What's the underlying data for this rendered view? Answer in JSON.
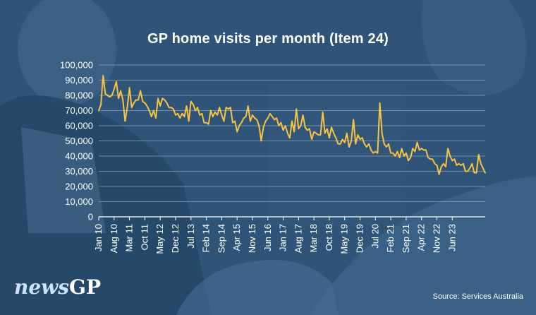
{
  "colors": {
    "background": "#2f5477",
    "line": "#f6c344",
    "grid": "#8fa9c3",
    "text": "#ffffff"
  },
  "logo": {
    "news": "news",
    "gp": "GP"
  },
  "source": "Source: Services Australia",
  "chart_data": {
    "type": "line",
    "title": "GP home visits per month (Item 24)",
    "xlabel": "",
    "ylabel": "",
    "ylim": [
      0,
      100000
    ],
    "yticks": [
      0,
      10000,
      20000,
      30000,
      40000,
      50000,
      60000,
      70000,
      80000,
      90000,
      100000
    ],
    "ytick_labels": [
      "0",
      "10,000",
      "20,000",
      "30,000",
      "40,000",
      "50,000",
      "60,000",
      "70,000",
      "80,000",
      "90,000",
      "100,000"
    ],
    "x_start": "Jan 10",
    "x_end": "Oct 23",
    "xtick_labels": [
      "Jan 10",
      "Aug 10",
      "Mar 11",
      "Oct 11",
      "May 12",
      "Dec 12",
      "Jul 13",
      "Feb 14",
      "Sep 14",
      "Apr 15",
      "Nov 15",
      "Jun 16",
      "Jan 17",
      "Aug 17",
      "Mar 18",
      "Oct 18",
      "May 19",
      "Dec 19",
      "Jul 20",
      "Feb 21",
      "Sep 21",
      "Apr 22",
      "Nov 22",
      "Jun 23"
    ],
    "grid": true,
    "legend": "none",
    "series": [
      {
        "values": [
          70000,
          74000,
          93000,
          81000,
          80000,
          79000,
          80000,
          84000,
          89000,
          78000,
          83000,
          77000,
          63000,
          72000,
          85000,
          72000,
          75000,
          77000,
          77000,
          83000,
          76000,
          75000,
          73000,
          70000,
          66000,
          70000,
          65000,
          78000,
          73000,
          78000,
          77000,
          75000,
          72000,
          72000,
          71000,
          67000,
          68000,
          65000,
          68000,
          66000,
          73000,
          63000,
          76000,
          74000,
          70000,
          72000,
          67000,
          68000,
          62000,
          62000,
          61000,
          70000,
          66000,
          69000,
          67000,
          72000,
          67000,
          63000,
          72000,
          71000,
          72000,
          62000,
          63000,
          56000,
          60000,
          62000,
          65000,
          66000,
          73000,
          63000,
          67000,
          65000,
          64000,
          60000,
          50000,
          59000,
          63000,
          65000,
          68000,
          66000,
          64000,
          65000,
          60000,
          62000,
          57000,
          60000,
          55000,
          52000,
          63000,
          56000,
          71000,
          58000,
          60000,
          67000,
          59000,
          57000,
          58000,
          51000,
          56000,
          55000,
          54000,
          54000,
          69000,
          55000,
          58000,
          52000,
          59000,
          55000,
          52000,
          48000,
          48000,
          51000,
          49000,
          55000,
          46000,
          50000,
          64000,
          48000,
          54000,
          51000,
          52000,
          48000,
          46000,
          48000,
          44000,
          42000,
          43000,
          42000,
          75000,
          55000,
          48000,
          46000,
          48000,
          42000,
          42000,
          40000,
          43000,
          39000,
          45000,
          40000,
          42000,
          37000,
          39000,
          45000,
          43000,
          49000,
          44000,
          45000,
          44000,
          44000,
          39000,
          38000,
          38000,
          35000,
          34000,
          28000,
          33000,
          35000,
          33000,
          45000,
          40000,
          37000,
          38000,
          34000,
          35000,
          34000,
          35000,
          30000,
          30000,
          32000,
          35000,
          29000,
          29000,
          41000,
          35000,
          32000,
          29000
        ]
      }
    ]
  }
}
